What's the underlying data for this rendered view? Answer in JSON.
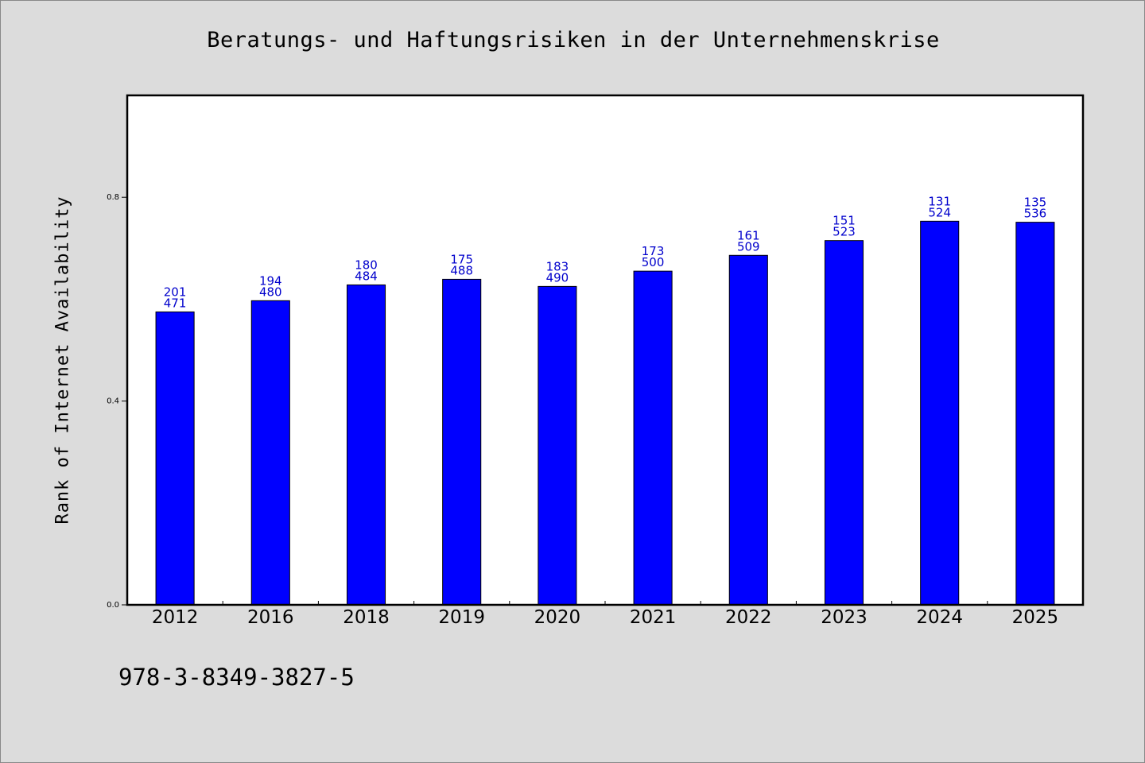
{
  "chart_data": {
    "type": "bar",
    "title": "Beratungs- und Haftungsrisiken in der Unternehmenskrise",
    "ylabel": "Rank of Internet Availability",
    "xlabel": "",
    "categories": [
      "2012",
      "2016",
      "2018",
      "2019",
      "2020",
      "2021",
      "2022",
      "2023",
      "2024",
      "2025"
    ],
    "values": [
      0.575,
      0.597,
      0.628,
      0.639,
      0.625,
      0.655,
      0.686,
      0.715,
      0.753,
      0.751
    ],
    "label_top": [
      "201",
      "194",
      "180",
      "175",
      "183",
      "173",
      "161",
      "151",
      "131",
      "135"
    ],
    "label_bottom": [
      "471",
      "480",
      "484",
      "488",
      "490",
      "500",
      "509",
      "523",
      "524",
      "536"
    ],
    "ylim": [
      0,
      1.0
    ],
    "yticks": [
      0.0,
      0.4,
      0.8
    ],
    "ytick_labels": [
      "0.0",
      "0.4",
      "0.8"
    ],
    "grid": false,
    "bar_color": "#0000ff",
    "label_color": "#0000cc",
    "background_color": "#dcdcdc",
    "plot_background": "#ffffff"
  },
  "footer": {
    "isbn": "978-3-8349-3827-5"
  }
}
